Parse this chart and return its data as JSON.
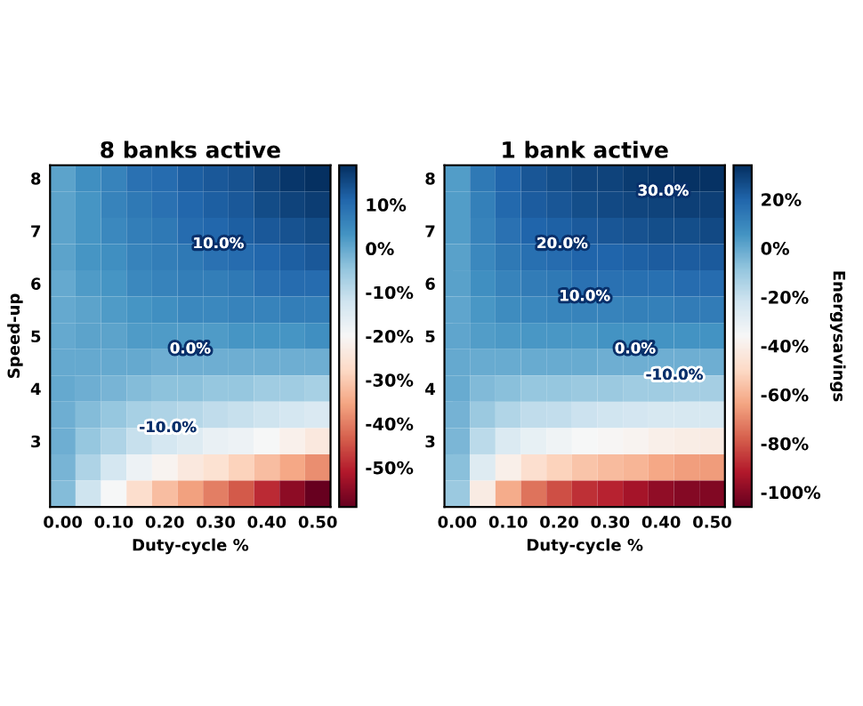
{
  "chart_data": [
    {
      "type": "heatmap",
      "title": "8 banks active",
      "xlabel": "Duty-cycle %",
      "ylabel": "Speed-up",
      "categories": [
        "0.00",
        null,
        "0.10",
        null,
        "0.20",
        null,
        "0.30",
        null,
        "0.40",
        null,
        "0.50"
      ],
      "y_categories": [
        "8",
        null,
        "7",
        null,
        "6",
        null,
        "5",
        null,
        "4",
        null,
        "3",
        null,
        null
      ],
      "cells": [
        [
          1,
          4,
          6,
          9,
          10,
          12,
          13,
          14,
          16,
          18,
          19
        ],
        [
          1,
          3,
          6,
          8,
          9,
          11,
          12,
          13,
          15,
          16,
          17
        ],
        [
          1,
          3,
          5,
          7,
          8,
          10,
          11,
          12,
          13,
          14,
          15
        ],
        [
          1,
          3,
          4,
          6,
          7,
          8,
          9,
          10,
          11,
          12,
          13
        ],
        [
          0,
          2,
          3,
          5,
          6,
          7,
          7,
          8,
          9,
          10,
          10
        ],
        [
          0,
          1,
          2,
          3,
          4,
          5,
          5,
          6,
          6,
          7,
          7
        ],
        [
          0,
          1,
          1,
          2,
          2,
          2,
          2,
          3,
          3,
          3,
          4
        ],
        [
          0,
          0,
          0,
          0,
          -1,
          -1,
          -1,
          -1,
          -1,
          -1,
          -1
        ],
        [
          0,
          -1,
          -2,
          -3,
          -4,
          -4,
          -5,
          -5,
          -6,
          -6,
          -7
        ],
        [
          -1,
          -3,
          -5,
          -7,
          -8,
          -9,
          -10,
          -11,
          -12,
          -13,
          -14
        ],
        [
          -1,
          -5,
          -8,
          -11,
          -13,
          -15,
          -17,
          -18,
          -20,
          -22,
          -24
        ],
        [
          -2,
          -8,
          -13,
          -18,
          -21,
          -24,
          -26,
          -29,
          -32,
          -35,
          -38
        ],
        [
          -3,
          -12,
          -20,
          -27,
          -32,
          -36,
          -40,
          -44,
          -49,
          -55,
          -59
        ]
      ],
      "clim": [
        -59,
        19
      ],
      "cticks": [
        {
          "value": 10,
          "label": "10%"
        },
        {
          "value": 0,
          "label": "0%"
        },
        {
          "value": -10,
          "label": "-10%"
        },
        {
          "value": -20,
          "label": "-20%"
        },
        {
          "value": -30,
          "label": "-30%"
        },
        {
          "value": -40,
          "label": "-40%"
        },
        {
          "value": -50,
          "label": "-50%"
        }
      ],
      "annotations": [
        "10.0%",
        "0.0%",
        "-10.0%"
      ]
    },
    {
      "type": "heatmap",
      "title": "1 bank active",
      "xlabel": "Duty-cycle %",
      "clabel": "Energysavings",
      "categories": [
        "0.00",
        null,
        "0.10",
        null,
        "0.20",
        null,
        "0.30",
        null,
        "0.40",
        null,
        "0.50"
      ],
      "y_categories": [
        "8",
        null,
        "7",
        null,
        "6",
        null,
        "5",
        null,
        "4",
        null,
        "3",
        null,
        null
      ],
      "cells": [
        [
          3,
          14,
          20,
          24,
          26,
          28,
          29,
          31,
          32,
          33,
          33
        ],
        [
          3,
          12,
          19,
          22,
          24,
          26,
          27,
          28,
          29,
          30,
          30
        ],
        [
          3,
          11,
          16,
          20,
          21,
          23,
          24,
          25,
          26,
          26,
          27
        ],
        [
          2,
          9,
          14,
          17,
          18,
          20,
          20,
          21,
          22,
          22,
          23
        ],
        [
          2,
          7,
          11,
          13,
          14,
          16,
          16,
          17,
          17,
          18,
          18
        ],
        [
          1,
          5,
          8,
          9,
          10,
          11,
          11,
          12,
          12,
          13,
          13
        ],
        [
          1,
          3,
          4,
          5,
          5,
          5,
          6,
          6,
          6,
          6,
          6
        ],
        [
          0,
          -1,
          -1,
          -1,
          -1,
          -1,
          -2,
          -2,
          -2,
          -2,
          -2
        ],
        [
          -1,
          -5,
          -7,
          -9,
          -9,
          -10,
          -10,
          -11,
          -11,
          -12,
          -12
        ],
        [
          -3,
          -10,
          -15,
          -18,
          -19,
          -21,
          -22,
          -23,
          -24,
          -24,
          -24
        ],
        [
          -4,
          -17,
          -26,
          -30,
          -33,
          -36,
          -37,
          -38,
          -40,
          -41,
          -42
        ],
        [
          -7,
          -27,
          -40,
          -48,
          -52,
          -56,
          -58,
          -60,
          -63,
          -65,
          -66
        ],
        [
          -10,
          -42,
          -62,
          -74,
          -81,
          -87,
          -90,
          -94,
          -98,
          -100,
          -101
        ]
      ],
      "clim": [
        -106,
        34
      ],
      "cticks": [
        {
          "value": 20,
          "label": "20%"
        },
        {
          "value": 0,
          "label": "0%"
        },
        {
          "value": -20,
          "label": "-20%"
        },
        {
          "value": -40,
          "label": "-40%"
        },
        {
          "value": -60,
          "label": "-60%"
        },
        {
          "value": -80,
          "label": "-80%"
        },
        {
          "value": -100,
          "label": "-100%"
        }
      ],
      "annotations": [
        "30.0%",
        "20.0%",
        "10.0%",
        "0.0%",
        "-10.0%"
      ]
    }
  ]
}
